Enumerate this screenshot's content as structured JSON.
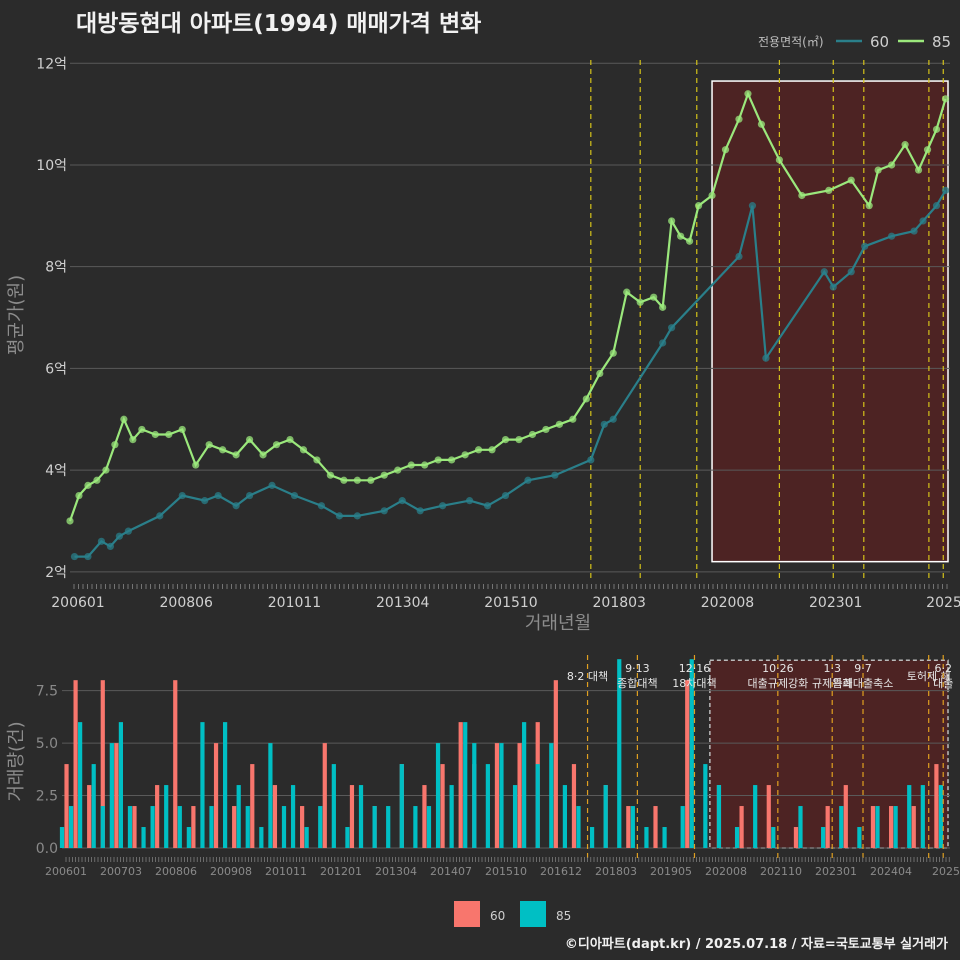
{
  "title": "대방동현대 아파트(1994) 매매가격 변화",
  "credit": "©디아파트(dapt.kr) / 2025.07.18 / 자료=국토교통부 실거래가",
  "colors": {
    "s60_line": "#2a7f8a",
    "s85_line": "#9be87c",
    "bar60": "#f8766d",
    "bar85": "#00bfc4",
    "policy": "#d4c21a",
    "shade": "#5a2222"
  },
  "chart_data": [
    {
      "type": "line",
      "ylabel": "평균가(원)",
      "xlabel": "거래년월",
      "ylim": [
        1.8,
        12.3
      ],
      "y_ticks": [
        {
          "v": 2,
          "label": "2억"
        },
        {
          "v": 4,
          "label": "4억"
        },
        {
          "v": 6,
          "label": "6억"
        },
        {
          "v": 8,
          "label": "8억"
        },
        {
          "v": 10,
          "label": "10억"
        },
        {
          "v": 12,
          "label": "12억"
        }
      ],
      "x_ticks": [
        "200601",
        "200806",
        "201011",
        "201304",
        "201510",
        "201803",
        "202008",
        "202301",
        "2025"
      ],
      "legend": {
        "title": "전용면적(㎡)",
        "entries": [
          "60",
          "85"
        ]
      },
      "x_range": [
        2006.0,
        2025.6
      ],
      "series": [
        {
          "name": "60",
          "x": [
            2006.1,
            2006.4,
            2006.7,
            2006.9,
            2007.1,
            2007.3,
            2008.0,
            2008.5,
            2009.0,
            2009.3,
            2009.7,
            2010.0,
            2010.5,
            2011.0,
            2011.6,
            2012.0,
            2012.4,
            2013.0,
            2013.4,
            2013.8,
            2014.3,
            2014.9,
            2015.3,
            2015.7,
            2016.2,
            2016.8,
            2017.6,
            2017.9,
            2018.1,
            2019.2,
            2019.4,
            2020.9,
            2021.2,
            2021.5,
            2022.8,
            2023.0,
            2023.4,
            2023.7,
            2024.3,
            2024.8,
            2025.0,
            2025.3,
            2025.5
          ],
          "y": [
            2.3,
            2.3,
            2.6,
            2.5,
            2.7,
            2.8,
            3.1,
            3.5,
            3.4,
            3.5,
            3.3,
            3.5,
            3.7,
            3.5,
            3.3,
            3.1,
            3.1,
            3.2,
            3.4,
            3.2,
            3.3,
            3.4,
            3.3,
            3.5,
            3.8,
            3.9,
            4.2,
            4.9,
            5.0,
            6.5,
            6.8,
            8.2,
            9.2,
            6.2,
            7.9,
            7.6,
            7.9,
            8.4,
            8.6,
            8.7,
            8.9,
            9.2,
            9.5
          ]
        },
        {
          "name": "85",
          "x": [
            2006.0,
            2006.2,
            2006.4,
            2006.6,
            2006.8,
            2007.0,
            2007.2,
            2007.4,
            2007.6,
            2007.9,
            2008.2,
            2008.5,
            2008.8,
            2009.1,
            2009.4,
            2009.7,
            2010.0,
            2010.3,
            2010.6,
            2010.9,
            2011.2,
            2011.5,
            2011.8,
            2012.1,
            2012.4,
            2012.7,
            2013.0,
            2013.3,
            2013.6,
            2013.9,
            2014.2,
            2014.5,
            2014.8,
            2015.1,
            2015.4,
            2015.7,
            2016.0,
            2016.3,
            2016.6,
            2016.9,
            2017.2,
            2017.5,
            2017.8,
            2018.1,
            2018.4,
            2018.7,
            2019.0,
            2019.2,
            2019.4,
            2019.6,
            2019.8,
            2020.0,
            2020.3,
            2020.6,
            2020.9,
            2021.1,
            2021.4,
            2021.8,
            2022.3,
            2022.9,
            2023.4,
            2023.8,
            2024.0,
            2024.3,
            2024.6,
            2024.9,
            2025.1,
            2025.3,
            2025.5
          ],
          "y": [
            3.0,
            3.5,
            3.7,
            3.8,
            4.0,
            4.5,
            5.0,
            4.6,
            4.8,
            4.7,
            4.7,
            4.8,
            4.1,
            4.5,
            4.4,
            4.3,
            4.6,
            4.3,
            4.5,
            4.6,
            4.4,
            4.2,
            3.9,
            3.8,
            3.8,
            3.8,
            3.9,
            4.0,
            4.1,
            4.1,
            4.2,
            4.2,
            4.3,
            4.4,
            4.4,
            4.6,
            4.6,
            4.7,
            4.8,
            4.9,
            5.0,
            5.4,
            5.9,
            6.3,
            7.5,
            7.3,
            7.4,
            7.2,
            8.9,
            8.6,
            8.5,
            9.2,
            9.4,
            10.3,
            10.9,
            11.4,
            10.8,
            10.1,
            9.4,
            9.5,
            9.7,
            9.2,
            9.9,
            10.0,
            10.4,
            9.9,
            10.3,
            10.7,
            11.3
          ]
        }
      ],
      "policy_dates": [
        2017.6,
        2018.7,
        2019.96,
        2021.8,
        2023.0,
        2023.68,
        2025.13,
        2025.45
      ],
      "highlight_range": [
        2020.3,
        2025.6
      ]
    },
    {
      "type": "bar",
      "ylabel": "거래량(건)",
      "ylim": [
        0,
        9.2
      ],
      "y_ticks": [
        {
          "v": 0,
          "label": "0.0"
        },
        {
          "v": 2.5,
          "label": "2.5"
        },
        {
          "v": 5,
          "label": "5.0"
        },
        {
          "v": 7.5,
          "label": "7.5"
        }
      ],
      "x_ticks": [
        "200601",
        "200703",
        "200806",
        "200908",
        "201011",
        "201201",
        "201304",
        "201407",
        "201510",
        "201612",
        "201803",
        "201905",
        "202008",
        "202110",
        "202301",
        "202404",
        "2025"
      ],
      "legend": {
        "entries": [
          "60",
          "85"
        ]
      },
      "policies": [
        {
          "date": 2017.6,
          "label": "8·2 대책"
        },
        {
          "date": 2018.7,
          "label": "9·13\n종합대책"
        },
        {
          "date": 2019.96,
          "label": "12·16\n18차대책"
        },
        {
          "date": 2021.8,
          "label": "10·26\n대출규제강화"
        },
        {
          "date": 2023.0,
          "label": "1·3\n규제완화"
        },
        {
          "date": 2023.68,
          "label": "9·7\n특례대출축소"
        },
        {
          "date": 2025.13,
          "label": "토허제 해"
        },
        {
          "date": 2025.45,
          "label": "6·2\n대출"
        }
      ],
      "x_range": [
        2006.0,
        2025.6
      ],
      "highlight_range": [
        2020.3,
        2025.6
      ],
      "series": [
        {
          "name": "60",
          "x": [
            2006.1,
            2006.3,
            2006.6,
            2006.9,
            2007.2,
            2007.6,
            2008.1,
            2008.5,
            2008.9,
            2009.4,
            2009.8,
            2010.2,
            2010.7,
            2011.3,
            2011.8,
            2012.4,
            2012.9,
            2013.5,
            2014.0,
            2014.4,
            2014.8,
            2015.1,
            2015.6,
            2016.1,
            2016.5,
            2016.9,
            2017.3,
            2018.0,
            2018.5,
            2019.1,
            2019.8,
            2020.5,
            2021.0,
            2021.6,
            2022.2,
            2022.9,
            2023.3,
            2023.9,
            2024.3,
            2024.8,
            2025.3
          ],
          "y": [
            4,
            8,
            3,
            8,
            5,
            2,
            3,
            8,
            2,
            5,
            2,
            4,
            3,
            2,
            5,
            3,
            2,
            4,
            3,
            4,
            6,
            4,
            5,
            5,
            6,
            8,
            4,
            3,
            2,
            2,
            8,
            3,
            2,
            3,
            1,
            2,
            3,
            2,
            2,
            2,
            4
          ]
        },
        {
          "name": "85",
          "x": [
            2006.0,
            2006.2,
            2006.4,
            2006.7,
            2006.9,
            2007.1,
            2007.3,
            2007.5,
            2007.8,
            2008.0,
            2008.3,
            2008.6,
            2008.8,
            2009.1,
            2009.3,
            2009.6,
            2009.9,
            2010.1,
            2010.4,
            2010.6,
            2010.9,
            2011.1,
            2011.4,
            2011.7,
            2012.0,
            2012.3,
            2012.6,
            2012.9,
            2013.2,
            2013.5,
            2013.8,
            2014.1,
            2014.3,
            2014.6,
            2014.9,
            2015.1,
            2015.4,
            2015.7,
            2016.0,
            2016.2,
            2016.5,
            2016.8,
            2017.1,
            2017.4,
            2017.7,
            2018.0,
            2018.3,
            2018.6,
            2018.9,
            2019.3,
            2019.7,
            2019.9,
            2020.2,
            2020.5,
            2020.9,
            2021.3,
            2021.7,
            2022.3,
            2022.8,
            2023.2,
            2023.6,
            2024.0,
            2024.4,
            2024.7,
            2025.0,
            2025.4
          ],
          "y": [
            1,
            2,
            6,
            4,
            2,
            5,
            6,
            2,
            1,
            2,
            3,
            2,
            1,
            6,
            2,
            6,
            3,
            2,
            1,
            5,
            2,
            3,
            1,
            2,
            4,
            1,
            3,
            2,
            2,
            4,
            2,
            2,
            5,
            3,
            6,
            5,
            4,
            5,
            3,
            6,
            4,
            5,
            3,
            2,
            1,
            3,
            9,
            2,
            1,
            1,
            2,
            9,
            4,
            3,
            1,
            3,
            1,
            2,
            1,
            2,
            1,
            2,
            2,
            3,
            3,
            3
          ]
        }
      ]
    }
  ]
}
